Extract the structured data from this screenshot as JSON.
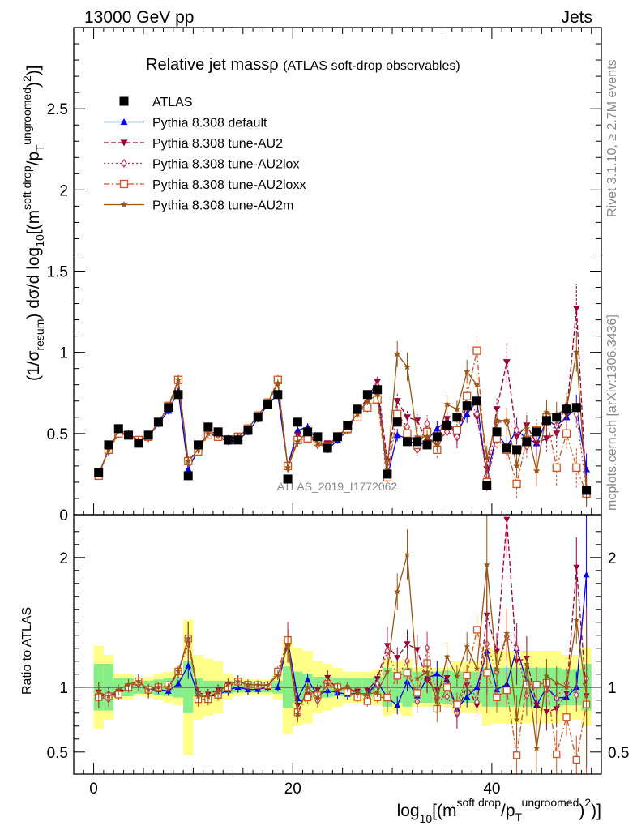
{
  "header": {
    "energy": "13000 GeV pp",
    "category": "Jets"
  },
  "side_labels": {
    "rivet": "Rivet 3.1.10, ≥ 2.7M events",
    "mcplots": "mcplots.cern.ch [arXiv:1306.3436]"
  },
  "watermark": "ATLAS_2019_I1772062",
  "chart_data": [
    {
      "type": "line",
      "panel": "main",
      "title": "Relative jet massρ (ATLAS soft-drop observables)",
      "title_main": "Relative jet massρ",
      "title_sub": "(ATLAS soft-drop observables)",
      "ylabel": "(1/σresum) dσ/d log10[(m^soft drop/pT^ungroomed)^2]",
      "ylim": [
        0,
        3.0
      ],
      "xlim": [
        -2,
        51
      ],
      "yticks": [
        "0",
        "0.5",
        "1",
        "1.5",
        "2",
        "2.5"
      ],
      "yticks_values": [
        0,
        0.5,
        1,
        1.5,
        2,
        2.5
      ],
      "legend_position": "top-left",
      "grid": false,
      "x": [
        0.5,
        1.5,
        2.5,
        3.5,
        4.5,
        5.5,
        6.5,
        7.5,
        8.5,
        9.5,
        10.5,
        11.5,
        12.5,
        13.5,
        14.5,
        15.5,
        16.5,
        17.5,
        18.5,
        19.5,
        20.5,
        21.5,
        22.5,
        23.5,
        24.5,
        25.5,
        26.5,
        27.5,
        28.5,
        29.5,
        30.5,
        31.5,
        32.5,
        33.5,
        34.5,
        35.5,
        36.5,
        37.5,
        38.5,
        39.5,
        40.5,
        41.5,
        42.5,
        43.5,
        44.5,
        45.5,
        46.5,
        47.5,
        48.5,
        49.5
      ],
      "series": [
        {
          "name": "ATLAS",
          "color": "#000000",
          "marker": "square",
          "line": "none",
          "values": [
            0.26,
            0.43,
            0.53,
            0.49,
            0.44,
            0.49,
            0.57,
            0.66,
            0.74,
            0.24,
            0.43,
            0.54,
            0.51,
            0.46,
            0.46,
            0.52,
            0.6,
            0.68,
            0.74,
            0.22,
            0.57,
            0.51,
            0.48,
            0.41,
            0.48,
            0.55,
            0.65,
            0.74,
            0.77,
            0.25,
            0.57,
            0.45,
            0.45,
            0.43,
            0.48,
            0.55,
            0.6,
            0.67,
            0.7,
            0.18,
            0.51,
            0.41,
            0.4,
            0.45,
            0.51,
            0.58,
            0.6,
            0.65,
            0.66,
            0.15
          ]
        },
        {
          "name": "Pythia 8.308 default",
          "color": "#0000ee",
          "marker": "triangle-up",
          "line": "solid",
          "values": [
            0.24,
            0.41,
            0.5,
            0.49,
            0.46,
            0.48,
            0.56,
            0.64,
            0.76,
            0.28,
            0.4,
            0.5,
            0.48,
            0.45,
            0.46,
            0.51,
            0.59,
            0.68,
            0.74,
            0.3,
            0.52,
            0.54,
            0.45,
            0.4,
            0.46,
            0.52,
            0.62,
            0.7,
            0.8,
            0.23,
            0.49,
            0.47,
            0.42,
            0.46,
            0.53,
            0.58,
            0.5,
            0.62,
            0.7,
            0.23,
            0.5,
            0.42,
            0.52,
            0.47,
            0.44,
            0.58,
            0.55,
            0.6,
            0.66,
            0.28
          ]
        },
        {
          "name": "Pythia 8.308 tune-AU2",
          "color": "#990033",
          "marker": "triangle-down",
          "line": "dashed",
          "values": [
            0.25,
            0.4,
            0.51,
            0.49,
            0.46,
            0.47,
            0.57,
            0.66,
            0.82,
            0.33,
            0.41,
            0.51,
            0.5,
            0.47,
            0.48,
            0.53,
            0.61,
            0.69,
            0.81,
            0.29,
            0.49,
            0.48,
            0.47,
            0.44,
            0.47,
            0.54,
            0.63,
            0.72,
            0.82,
            0.33,
            0.7,
            0.6,
            0.58,
            0.45,
            0.47,
            0.59,
            0.47,
            0.68,
            0.6,
            0.28,
            0.65,
            0.94,
            0.48,
            0.55,
            0.44,
            0.47,
            0.5,
            0.62,
            1.27,
            0.14
          ]
        },
        {
          "name": "Pythia 8.308 tune-AU2lox",
          "color": "#bb3355",
          "marker": "diamond-open",
          "line": "dotted",
          "values": [
            0.24,
            0.39,
            0.5,
            0.49,
            0.45,
            0.48,
            0.57,
            0.66,
            0.83,
            0.32,
            0.41,
            0.5,
            0.49,
            0.46,
            0.48,
            0.53,
            0.61,
            0.69,
            0.82,
            0.29,
            0.46,
            0.5,
            0.43,
            0.42,
            0.48,
            0.55,
            0.61,
            0.69,
            0.79,
            0.32,
            0.62,
            0.54,
            0.4,
            0.56,
            0.44,
            0.51,
            0.48,
            0.73,
            0.62,
            0.24,
            0.57,
            0.57,
            0.52,
            0.42,
            0.52,
            0.57,
            0.55,
            0.67,
            0.62,
            0.16
          ]
        },
        {
          "name": "Pythia 8.308 tune-AU2loxx",
          "color": "#cc5522",
          "marker": "square-open",
          "line": "dashdot",
          "values": [
            0.24,
            0.4,
            0.5,
            0.49,
            0.46,
            0.48,
            0.57,
            0.67,
            0.83,
            0.33,
            0.39,
            0.49,
            0.48,
            0.46,
            0.48,
            0.53,
            0.61,
            0.69,
            0.83,
            0.3,
            0.46,
            0.47,
            0.45,
            0.42,
            0.48,
            0.53,
            0.6,
            0.66,
            0.71,
            0.23,
            0.62,
            0.5,
            0.43,
            0.51,
            0.4,
            0.55,
            0.52,
            0.73,
            1.01,
            0.2,
            0.47,
            0.4,
            0.19,
            0.46,
            0.52,
            0.6,
            0.29,
            0.5,
            0.29,
            0.13
          ]
        },
        {
          "name": "Pythia 8.308 tune-AU2m",
          "color": "#995511",
          "marker": "star",
          "line": "solid",
          "values": [
            0.25,
            0.4,
            0.52,
            0.5,
            0.46,
            0.48,
            0.57,
            0.66,
            0.83,
            0.33,
            0.4,
            0.5,
            0.49,
            0.47,
            0.48,
            0.53,
            0.61,
            0.69,
            0.81,
            0.29,
            0.45,
            0.51,
            0.44,
            0.42,
            0.47,
            0.55,
            0.62,
            0.7,
            0.74,
            0.28,
            0.99,
            0.91,
            0.48,
            0.48,
            0.43,
            0.68,
            0.65,
            0.88,
            0.8,
            0.35,
            0.58,
            0.58,
            0.3,
            0.53,
            0.27,
            0.63,
            0.62,
            0.65,
            1.0,
            0.14
          ]
        }
      ]
    },
    {
      "type": "line",
      "panel": "ratio",
      "ylabel": "Ratio to ATLAS",
      "xlabel": "log10[(m^soft drop/pT^ungroomed)^2]",
      "xlim": [
        -2,
        51
      ],
      "ylim": [
        0.33,
        2.33
      ],
      "xticks": [
        "0",
        "20",
        "40"
      ],
      "xticks_values": [
        0,
        20,
        40
      ],
      "yticks": [
        "0.5",
        "1",
        "2"
      ],
      "yticks_values": [
        0.5,
        1,
        2
      ],
      "band_inner": [
        0.18,
        0.18,
        0.07,
        0.07,
        0.05,
        0.05,
        0.06,
        0.07,
        0.08,
        0.2,
        0.07,
        0.05,
        0.05,
        0.05,
        0.04,
        0.04,
        0.04,
        0.04,
        0.05,
        0.16,
        0.12,
        0.1,
        0.08,
        0.08,
        0.07,
        0.07,
        0.07,
        0.07,
        0.08,
        0.15,
        0.12,
        0.15,
        0.12,
        0.12,
        0.12,
        0.13,
        0.12,
        0.12,
        0.12,
        0.15,
        0.15,
        0.15,
        0.15,
        0.15,
        0.15,
        0.15,
        0.15,
        0.14,
        0.14,
        0.18
      ],
      "band_outer": [
        0.32,
        0.25,
        0.1,
        0.1,
        0.07,
        0.08,
        0.1,
        0.12,
        0.14,
        0.52,
        0.25,
        0.22,
        0.2,
        0.1,
        0.07,
        0.06,
        0.06,
        0.06,
        0.1,
        0.36,
        0.3,
        0.28,
        0.2,
        0.18,
        0.15,
        0.12,
        0.12,
        0.12,
        0.14,
        0.22,
        0.2,
        0.22,
        0.15,
        0.15,
        0.15,
        0.15,
        0.2,
        0.2,
        0.2,
        0.3,
        0.28,
        0.28,
        0.28,
        0.28,
        0.28,
        0.28,
        0.28,
        0.25,
        0.25,
        0.3
      ],
      "reference_line": 1,
      "band_inner_color": "#88ee88",
      "band_outer_color": "#ffff88"
    }
  ]
}
